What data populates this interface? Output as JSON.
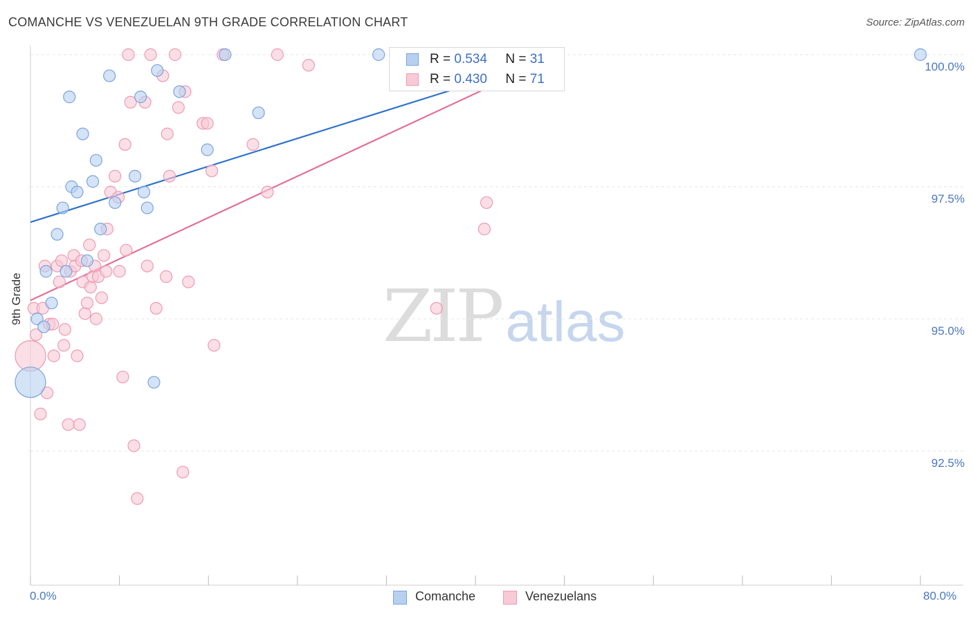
{
  "header": {
    "title": "COMANCHE VS VENEZUELAN 9TH GRADE CORRELATION CHART",
    "source": "Source: ZipAtlas.com"
  },
  "watermark": {
    "zip": "ZIP",
    "atlas": "atlas"
  },
  "legend": {
    "comanche": {
      "r_label": "R =",
      "r_value": "0.534",
      "n_label": "N =",
      "n_value": "31"
    },
    "venezuelan": {
      "r_label": "R =",
      "r_value": "0.430",
      "n_label": "N =",
      "n_value": "71"
    }
  },
  "bottom_legend": {
    "comanche": "Comanche",
    "venezuelans": "Venezuelans"
  },
  "colors": {
    "comanche_fill": "#b8d0f0",
    "comanche_stroke": "#7aa4de",
    "comanche_line": "#2f72cc",
    "venezuelan_fill": "#f8c9d6",
    "venezuelan_stroke": "#ee9ab2",
    "venezuelan_line": "#e26f98",
    "grid": "#e6e6e6",
    "tick_label": "#4a78c0"
  },
  "chart_data": {
    "type": "scatter",
    "title": "COMANCHE VS VENEZUELAN 9TH GRADE CORRELATION CHART",
    "xlabel": "",
    "ylabel": "9th Grade",
    "xlim": [
      0,
      80
    ],
    "ylim": [
      90.5,
      100.2
    ],
    "x_tick_labels": [
      "0.0%",
      "80.0%"
    ],
    "y_ticks": [
      92.5,
      95.0,
      97.5,
      100.0
    ],
    "y_tick_labels": [
      "92.5%",
      "95.0%",
      "97.5%",
      "100.0%"
    ],
    "grid": true,
    "legend_position": "top-center",
    "series": [
      {
        "name": "Comanche",
        "r": 0.534,
        "n": 31,
        "trend": {
          "x": [
            0,
            48
          ],
          "y": [
            96.83,
            100.0
          ]
        },
        "points": [
          {
            "x": 0.0,
            "y": 93.8,
            "s": "large"
          },
          {
            "x": 0.6,
            "y": 95.0
          },
          {
            "x": 1.2,
            "y": 94.85
          },
          {
            "x": 1.4,
            "y": 95.9
          },
          {
            "x": 1.9,
            "y": 95.3
          },
          {
            "x": 2.4,
            "y": 96.6
          },
          {
            "x": 2.9,
            "y": 97.1
          },
          {
            "x": 3.2,
            "y": 95.9
          },
          {
            "x": 3.5,
            "y": 99.2
          },
          {
            "x": 3.7,
            "y": 97.5
          },
          {
            "x": 4.2,
            "y": 97.4
          },
          {
            "x": 4.7,
            "y": 98.5
          },
          {
            "x": 5.1,
            "y": 96.1
          },
          {
            "x": 5.6,
            "y": 97.6
          },
          {
            "x": 5.9,
            "y": 98.0
          },
          {
            "x": 6.3,
            "y": 96.7
          },
          {
            "x": 7.1,
            "y": 99.6
          },
          {
            "x": 7.6,
            "y": 97.2
          },
          {
            "x": 9.4,
            "y": 97.7
          },
          {
            "x": 9.9,
            "y": 99.2
          },
          {
            "x": 10.2,
            "y": 97.4
          },
          {
            "x": 10.5,
            "y": 97.1
          },
          {
            "x": 11.1,
            "y": 93.8
          },
          {
            "x": 11.4,
            "y": 99.7
          },
          {
            "x": 13.4,
            "y": 99.3
          },
          {
            "x": 15.9,
            "y": 98.2
          },
          {
            "x": 17.5,
            "y": 100.0
          },
          {
            "x": 20.5,
            "y": 98.9
          },
          {
            "x": 31.3,
            "y": 100.0
          },
          {
            "x": 33.3,
            "y": 100.0
          },
          {
            "x": 80.0,
            "y": 100.0
          }
        ]
      },
      {
        "name": "Venezuelans",
        "r": 0.43,
        "n": 71,
        "trend": {
          "x": [
            0,
            47.5
          ],
          "y": [
            95.35,
            100.0
          ]
        },
        "points": [
          {
            "x": 0.0,
            "y": 94.3,
            "s": "large"
          },
          {
            "x": 0.3,
            "y": 95.2
          },
          {
            "x": 0.5,
            "y": 94.7
          },
          {
            "x": 0.9,
            "y": 93.2
          },
          {
            "x": 1.1,
            "y": 95.2
          },
          {
            "x": 1.3,
            "y": 96.0
          },
          {
            "x": 1.5,
            "y": 93.6
          },
          {
            "x": 1.7,
            "y": 94.9
          },
          {
            "x": 2.0,
            "y": 94.9
          },
          {
            "x": 2.1,
            "y": 94.3
          },
          {
            "x": 2.4,
            "y": 96.0
          },
          {
            "x": 2.6,
            "y": 95.7
          },
          {
            "x": 2.8,
            "y": 96.1
          },
          {
            "x": 3.0,
            "y": 94.5
          },
          {
            "x": 3.1,
            "y": 94.8
          },
          {
            "x": 3.4,
            "y": 93.0
          },
          {
            "x": 3.6,
            "y": 95.9
          },
          {
            "x": 3.9,
            "y": 96.2
          },
          {
            "x": 4.0,
            "y": 96.0
          },
          {
            "x": 4.2,
            "y": 94.3
          },
          {
            "x": 4.4,
            "y": 93.0
          },
          {
            "x": 4.6,
            "y": 96.1
          },
          {
            "x": 4.7,
            "y": 95.7
          },
          {
            "x": 4.9,
            "y": 95.1
          },
          {
            "x": 5.1,
            "y": 95.3
          },
          {
            "x": 5.3,
            "y": 96.4
          },
          {
            "x": 5.4,
            "y": 95.6
          },
          {
            "x": 5.6,
            "y": 95.8
          },
          {
            "x": 5.8,
            "y": 96.0
          },
          {
            "x": 5.9,
            "y": 95.0
          },
          {
            "x": 6.1,
            "y": 95.8
          },
          {
            "x": 6.4,
            "y": 95.4
          },
          {
            "x": 6.6,
            "y": 96.2
          },
          {
            "x": 6.8,
            "y": 95.9
          },
          {
            "x": 6.9,
            "y": 96.7
          },
          {
            "x": 7.2,
            "y": 97.4
          },
          {
            "x": 7.6,
            "y": 97.7
          },
          {
            "x": 7.9,
            "y": 97.3
          },
          {
            "x": 8.0,
            "y": 95.9
          },
          {
            "x": 8.3,
            "y": 93.9
          },
          {
            "x": 8.5,
            "y": 98.3
          },
          {
            "x": 8.6,
            "y": 96.3
          },
          {
            "x": 8.8,
            "y": 100.0
          },
          {
            "x": 9.0,
            "y": 99.1
          },
          {
            "x": 9.3,
            "y": 92.6
          },
          {
            "x": 9.6,
            "y": 91.6
          },
          {
            "x": 10.3,
            "y": 99.1
          },
          {
            "x": 10.5,
            "y": 96.0
          },
          {
            "x": 10.8,
            "y": 100.0
          },
          {
            "x": 11.3,
            "y": 95.2
          },
          {
            "x": 11.9,
            "y": 99.6
          },
          {
            "x": 12.2,
            "y": 95.8
          },
          {
            "x": 12.3,
            "y": 98.5
          },
          {
            "x": 12.5,
            "y": 97.7
          },
          {
            "x": 13.0,
            "y": 100.0
          },
          {
            "x": 13.3,
            "y": 99.0
          },
          {
            "x": 13.7,
            "y": 92.1
          },
          {
            "x": 13.9,
            "y": 99.3
          },
          {
            "x": 14.2,
            "y": 95.7
          },
          {
            "x": 15.5,
            "y": 98.7
          },
          {
            "x": 15.9,
            "y": 98.7
          },
          {
            "x": 16.3,
            "y": 97.8
          },
          {
            "x": 16.5,
            "y": 94.5
          },
          {
            "x": 17.3,
            "y": 100.0
          },
          {
            "x": 20.0,
            "y": 98.3
          },
          {
            "x": 21.3,
            "y": 97.4
          },
          {
            "x": 22.2,
            "y": 100.0
          },
          {
            "x": 25.0,
            "y": 99.8
          },
          {
            "x": 36.5,
            "y": 95.2
          },
          {
            "x": 40.8,
            "y": 96.7
          },
          {
            "x": 41.0,
            "y": 97.2
          }
        ]
      }
    ]
  }
}
